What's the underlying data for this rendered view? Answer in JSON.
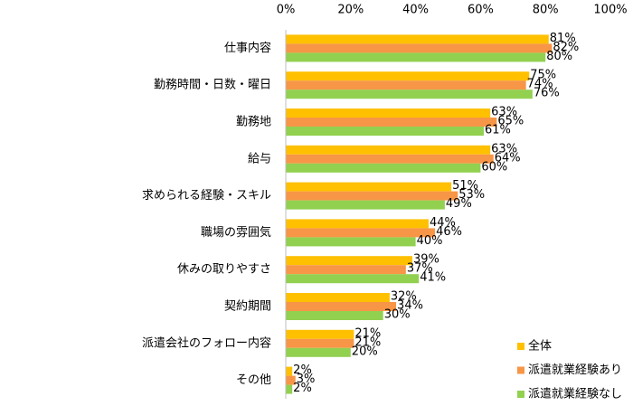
{
  "chart_data": {
    "type": "hbar",
    "categories": [
      "仕事内容",
      "勤務時間・日数・曜日",
      "勤務地",
      "給与",
      "求められる経験・スキル",
      "職場の雰囲気",
      "休みの取りやすさ",
      "契約期間",
      "派遣会社のフォロー内容",
      "その他"
    ],
    "series": [
      {
        "name": "全体",
        "color": "#ffc000",
        "values": [
          81,
          75,
          63,
          63,
          51,
          44,
          39,
          32,
          21,
          2
        ],
        "value_labels": [
          "81%",
          "75%",
          "63%",
          "63%",
          "51%",
          "44%",
          "39%",
          "32%",
          "21%",
          "2%"
        ]
      },
      {
        "name": "派遣就業経験あり",
        "color": "#f79646",
        "values": [
          82,
          74,
          65,
          64,
          53,
          46,
          37,
          34,
          21,
          3
        ],
        "value_labels": [
          "82%",
          "74%",
          "65%",
          "64%",
          "53%",
          "46%",
          "37%",
          "34%",
          "21%",
          "3%"
        ]
      },
      {
        "name": "派遣就業経験なし",
        "color": "#92d050",
        "values": [
          80,
          76,
          61,
          60,
          49,
          40,
          41,
          30,
          20,
          2
        ],
        "value_labels": [
          "80%",
          "76%",
          "61%",
          "60%",
          "49%",
          "40%",
          "41%",
          "30%",
          "20%",
          "2%"
        ]
      }
    ],
    "xlim": [
      0,
      100
    ],
    "xticks": [
      {
        "value": 0,
        "label": "0%"
      },
      {
        "value": 20,
        "label": "20%"
      },
      {
        "value": 40,
        "label": "40%"
      },
      {
        "value": 60,
        "label": "60%"
      },
      {
        "value": 80,
        "label": "80%"
      },
      {
        "value": 100,
        "label": "100%"
      }
    ],
    "legend": "lower right"
  }
}
